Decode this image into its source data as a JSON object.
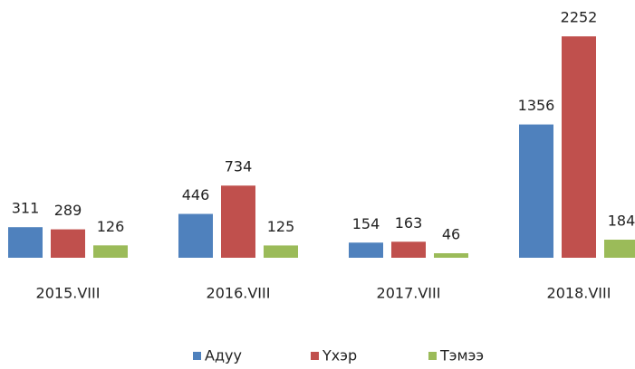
{
  "chart_data": {
    "type": "bar",
    "categories": [
      "2015.VIII",
      "2016.VIII",
      "2017.VIII",
      "2018.VIII"
    ],
    "series": [
      {
        "name": "Адуу",
        "color": "#4f81bd",
        "values": [
          311,
          446,
          154,
          1356
        ]
      },
      {
        "name": "Үхэр",
        "color": "#c0504d",
        "values": [
          289,
          734,
          163,
          2252
        ]
      },
      {
        "name": "Тэмээ",
        "color": "#9bbb59",
        "values": [
          126,
          125,
          46,
          184
        ]
      }
    ],
    "ylim": [
      0,
      2300
    ],
    "legend": "bottom"
  }
}
